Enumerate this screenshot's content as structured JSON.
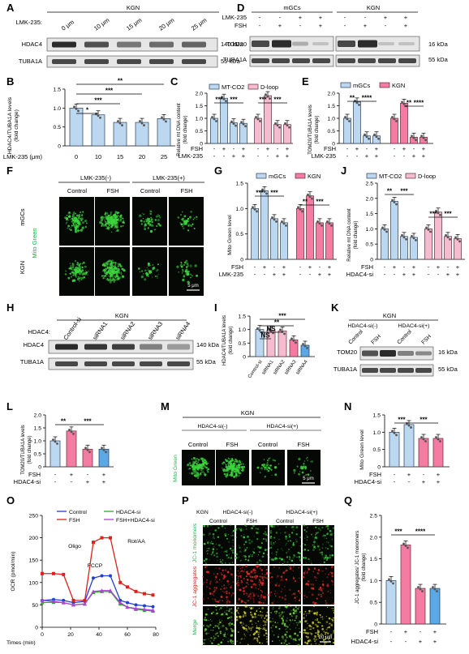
{
  "panels": {
    "A": {
      "letter": "A",
      "header": "KGN",
      "treatment_label": "LMK-235:",
      "conditions": [
        "0 μm",
        "10 μm",
        "15 μm",
        "20 μm",
        "25 μm"
      ],
      "rows": [
        "HDAC4",
        "TUBA1A"
      ],
      "sizes": [
        "140 kDa",
        "55 kDa"
      ]
    },
    "B": {
      "letter": "B",
      "ylabel": "HDAC4/TUBA1A levels\n(fold change)",
      "xlabel": "LMK-235 (μm)",
      "categories": [
        "0",
        "10",
        "15",
        "20",
        "25"
      ],
      "yticks": [
        "0",
        "0.5",
        "1.0",
        "1.5"
      ],
      "sig": [
        "*",
        "***",
        "***",
        "**"
      ]
    },
    "C": {
      "letter": "C",
      "ylabel": "Relative mt DNA content\n(fold change)",
      "legend": [
        "MT-CO2",
        "D-loop"
      ],
      "yticks": [
        "0",
        "0.5",
        "1.0",
        "1.5",
        "2.0"
      ],
      "rows": [
        "FSH",
        "LMK-235"
      ],
      "sig": [
        "***",
        "***",
        "***",
        "***"
      ]
    },
    "D": {
      "letter": "D",
      "groups": [
        "mGCs",
        "KGN"
      ],
      "treat_rows": [
        "LMK-235",
        "FSH"
      ],
      "rows": [
        "TOM20",
        "TUBA1A"
      ],
      "sizes": [
        "16 kDa",
        "55 kDa"
      ]
    },
    "E": {
      "letter": "E",
      "ylabel": "TOM20/TUBA1A levels\n(fold change)",
      "legend": [
        "mGCs",
        "KGN"
      ],
      "yticks": [
        "0",
        "0.5",
        "1.0",
        "1.5",
        "2.0"
      ],
      "rows": [
        "FSH",
        "LMK-235"
      ],
      "sig": [
        "**",
        "****",
        "**",
        "****"
      ]
    },
    "F": {
      "letter": "F",
      "groups": [
        "LMK-235(-)",
        "LMK-235(+)"
      ],
      "cols": [
        "Control",
        "FSH",
        "Control",
        "FSH"
      ],
      "rows": [
        "mGCs",
        "KGN"
      ],
      "stain": "Mito Green",
      "scale": "5 μm"
    },
    "G": {
      "letter": "G",
      "ylabel": "Mito Green level",
      "legend": [
        "mGCs",
        "KGN"
      ],
      "yticks": [
        "0",
        "0.5",
        "1.0",
        "1.5"
      ],
      "rows": [
        "FSH",
        "LMK-235"
      ],
      "sig": [
        "***",
        "***",
        "**",
        "***"
      ]
    },
    "H": {
      "letter": "H",
      "header": "KGN",
      "treatment_label": "HDAC4:",
      "conditions": [
        "Control-si",
        "siRNA1",
        "siRNA2",
        "siRNA3",
        "siRNA4"
      ],
      "rows": [
        "HDAC4",
        "TUBA1A"
      ],
      "sizes": [
        "140 kDa",
        "55 kDa"
      ]
    },
    "I": {
      "letter": "I",
      "ylabel": "HDAC4/TUBA1A levels\n(fold change)",
      "categories": [
        "Control-si",
        "siRNA1",
        "siRNA2",
        "siRNA3",
        "siRNA4"
      ],
      "yticks": [
        "0",
        "0.5",
        "1.0",
        "1.5"
      ],
      "sig": [
        "NS",
        "NS",
        "**",
        "***"
      ]
    },
    "J": {
      "letter": "J",
      "ylabel": "Relative mt DNA content\n(fold change)",
      "legend": [
        "MT-CO2",
        "D-loop"
      ],
      "yticks": [
        "0",
        "0.5",
        "1.0",
        "1.5",
        "2.0",
        "2.5"
      ],
      "rows": [
        "FSH",
        "HDAC4-si"
      ],
      "sig": [
        "**",
        "***",
        "***",
        "***"
      ]
    },
    "K": {
      "letter": "K",
      "header": "KGN",
      "groups": [
        "HDAC4-si(-)",
        "HDAC4-si(+)"
      ],
      "cols": [
        "Control",
        "FSH",
        "Control",
        "FSH"
      ],
      "rows": [
        "TOM20",
        "TUBA1A"
      ],
      "sizes": [
        "16 kDa",
        "55 kDa"
      ]
    },
    "L": {
      "letter": "L",
      "ylabel": "TOM20/TUBA1A levels\n(fold change)",
      "yticks": [
        "0",
        "0.5",
        "1.0",
        "1.5",
        "2.0"
      ],
      "rows": [
        "FSH",
        "HDAC4-si"
      ],
      "sig": [
        "**",
        "***"
      ]
    },
    "M": {
      "letter": "M",
      "header": "KGN",
      "groups": [
        "HDAC4-si(-)",
        "HDAC4-si(+)"
      ],
      "cols": [
        "Control",
        "FSH",
        "Control",
        "FSH"
      ],
      "stain": "Mito Green",
      "scale": "5 μm"
    },
    "N": {
      "letter": "N",
      "ylabel": "Mito Green level",
      "yticks": [
        "0",
        "0.5",
        "1.0",
        "1.5"
      ],
      "rows": [
        "FSH",
        "HDAC4-si"
      ],
      "sig": [
        "***",
        "***"
      ]
    },
    "O": {
      "letter": "O",
      "ylabel": "OCR (pmol/min)",
      "xlabel": "Times (min)",
      "legend": [
        "Control",
        "HDAC4-si",
        "FSH",
        "FSH+HDAC4-si"
      ],
      "yticks": [
        "0",
        "50",
        "100",
        "150",
        "200",
        "250"
      ],
      "xticks": [
        "0",
        "20",
        "40",
        "60",
        "80"
      ],
      "annotations": [
        "Oligo",
        "FCCP",
        "Rot/AA"
      ]
    },
    "P": {
      "letter": "P",
      "header": "KGN",
      "groups": [
        "HDAC4-si(-)",
        "HDAC4-si(+)"
      ],
      "cols": [
        "Control",
        "FSH",
        "Control",
        "FSH"
      ],
      "rows": [
        "JC-1 monomers",
        "JC-1 aggregates",
        "Merge"
      ],
      "scale": "20 μm"
    },
    "Q": {
      "letter": "Q",
      "ylabel": "JC-1 aggregates/ JC-1 monomers\n(fold change)",
      "yticks": [
        "0",
        "0.5",
        "1.0",
        "1.5",
        "2.0",
        "2.5"
      ],
      "rows": [
        "FSH",
        "HDAC4-si"
      ],
      "sig": [
        "***",
        "****"
      ]
    }
  },
  "signs": {
    "minus": "-",
    "plus": "+"
  },
  "chart_data": [
    {
      "panel": "B",
      "type": "bar",
      "categories": [
        "0",
        "10",
        "15",
        "20",
        "25"
      ],
      "values": [
        1.0,
        0.82,
        0.62,
        0.62,
        0.72
      ],
      "ylim": [
        0,
        1.5
      ]
    },
    {
      "panel": "C",
      "type": "bar",
      "categories": [
        "MT-CO2 1",
        "MT-CO2 2",
        "MT-CO2 3",
        "MT-CO2 4",
        "D-loop 1",
        "D-loop 2",
        "D-loop 3",
        "D-loop 4"
      ],
      "values": [
        1.0,
        1.8,
        0.82,
        0.8,
        1.0,
        1.9,
        0.75,
        0.75
      ],
      "ylim": [
        0,
        2.0
      ]
    },
    {
      "panel": "E",
      "type": "bar",
      "categories": [
        "mGCs 1",
        "mGCs 2",
        "mGCs 3",
        "mGCs 4",
        "KGN 1",
        "KGN 2",
        "KGN 3",
        "KGN 4"
      ],
      "values": [
        1.0,
        1.65,
        0.3,
        0.3,
        1.0,
        1.6,
        0.25,
        0.25
      ],
      "ylim": [
        0,
        2.0
      ]
    },
    {
      "panel": "G",
      "type": "bar",
      "categories": [
        "mGCs 1",
        "mGCs 2",
        "mGCs 3",
        "mGCs 4",
        "KGN 1",
        "KGN 2",
        "KGN 3",
        "KGN 4"
      ],
      "values": [
        1.0,
        1.35,
        0.8,
        0.72,
        1.0,
        1.25,
        0.72,
        0.72
      ],
      "ylim": [
        0,
        1.5
      ]
    },
    {
      "panel": "I",
      "type": "bar",
      "categories": [
        "Control-si",
        "siRNA1",
        "siRNA2",
        "siRNA3",
        "siRNA4"
      ],
      "values": [
        1.0,
        0.98,
        0.95,
        0.62,
        0.42
      ],
      "ylim": [
        0,
        1.5
      ]
    },
    {
      "panel": "J",
      "type": "bar",
      "categories": [
        "MT-CO2 1",
        "MT-CO2 2",
        "MT-CO2 3",
        "MT-CO2 4",
        "D-loop 1",
        "D-loop 2",
        "D-loop 3",
        "D-loop 4"
      ],
      "values": [
        1.0,
        1.9,
        0.75,
        0.72,
        1.0,
        1.55,
        0.75,
        0.68
      ],
      "ylim": [
        0,
        2.5
      ]
    },
    {
      "panel": "L",
      "type": "bar",
      "categories": [
        "1",
        "2",
        "3",
        "4"
      ],
      "values": [
        1.0,
        1.38,
        0.68,
        0.68
      ],
      "ylim": [
        0,
        2.0
      ]
    },
    {
      "panel": "N",
      "type": "bar",
      "categories": [
        "1",
        "2",
        "3",
        "4"
      ],
      "values": [
        1.0,
        1.22,
        0.82,
        0.82
      ],
      "ylim": [
        0,
        1.5
      ]
    },
    {
      "panel": "O",
      "type": "line",
      "x": [
        0,
        8,
        15,
        22,
        30,
        36,
        42,
        48,
        55,
        60,
        66,
        72,
        78
      ],
      "series": [
        {
          "name": "Control",
          "values": [
            60,
            62,
            60,
            55,
            58,
            110,
            115,
            115,
            60,
            55,
            50,
            48,
            46
          ]
        },
        {
          "name": "HDAC4-si",
          "values": [
            55,
            56,
            55,
            50,
            52,
            78,
            80,
            80,
            52,
            45,
            40,
            38,
            36
          ]
        },
        {
          "name": "FSH",
          "values": [
            120,
            120,
            118,
            60,
            60,
            190,
            200,
            200,
            100,
            90,
            80,
            75,
            72
          ]
        },
        {
          "name": "FSH+HDAC4-si",
          "values": [
            60,
            58,
            55,
            50,
            52,
            80,
            82,
            82,
            55,
            45,
            42,
            40,
            38
          ]
        }
      ],
      "ylim": [
        0,
        250
      ]
    },
    {
      "panel": "Q",
      "type": "bar",
      "categories": [
        "1",
        "2",
        "3",
        "4"
      ],
      "values": [
        1.0,
        1.82,
        0.82,
        0.82
      ],
      "ylim": [
        0,
        2.5
      ]
    }
  ],
  "colors": {
    "blue_light": "#bcd8f1",
    "pink_light": "#f5bcd0",
    "blue": "#5aa8e6",
    "pink": "#f47ca2",
    "red_line": "#e0201c",
    "blue_line": "#1f3fd6",
    "green_line": "#2fa82f",
    "purple_line": "#b040d8"
  }
}
